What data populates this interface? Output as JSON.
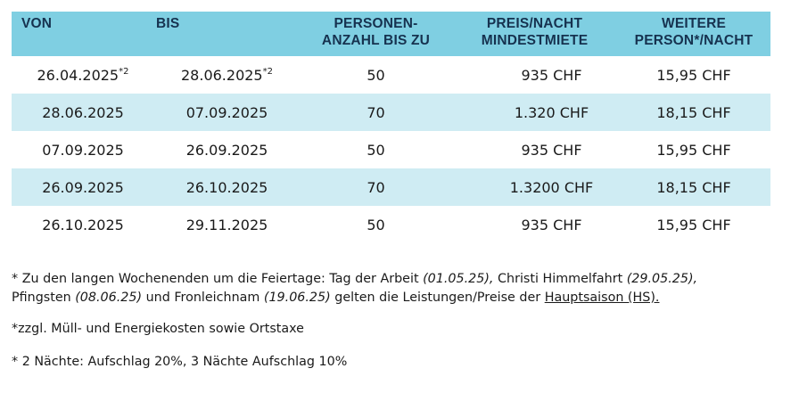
{
  "table": {
    "headers": [
      {
        "line1": "VON",
        "line2": ""
      },
      {
        "line1": "BIS",
        "line2": ""
      },
      {
        "line1": "PERSONEN-",
        "line2": "ANZAHL BIS ZU"
      },
      {
        "line1": "PREIS/NACHT",
        "line2": "MINDESTMIETE"
      },
      {
        "line1": "WEITERE",
        "line2": "PERSON*/NACHT"
      }
    ],
    "rows": [
      {
        "von": "26.04.2025",
        "von_mark": "*2",
        "bis": "28.06.2025",
        "bis_mark": "*2",
        "personen": "50",
        "preis": "935 CHF",
        "weitere": "15,95 CHF"
      },
      {
        "von": "28.06.2025",
        "von_mark": "",
        "bis": "07.09.2025",
        "bis_mark": "",
        "personen": "70",
        "preis": "1.320 CHF",
        "weitere": "18,15 CHF"
      },
      {
        "von": "07.09.2025",
        "von_mark": "",
        "bis": "26.09.2025",
        "bis_mark": "",
        "personen": "50",
        "preis": "935 CHF",
        "weitere": "15,95 CHF"
      },
      {
        "von": "26.09.2025",
        "von_mark": "",
        "bis": "26.10.2025",
        "bis_mark": "",
        "personen": "70",
        "preis": "1.3200 CHF",
        "weitere": "18,15 CHF"
      },
      {
        "von": "26.10.2025",
        "von_mark": "",
        "bis": "29.11.2025",
        "bis_mark": "",
        "personen": "50",
        "preis": "935 CHF",
        "weitere": "15,95 CHF"
      }
    ]
  },
  "notes": {
    "n1_prefix": "* Zu den langen Wochenenden um die Feiertage: Tag der Arbeit ",
    "n1_date1": "(01.05.25),",
    "n1_mid1": " Christi Himmelfahrt ",
    "n1_date2": "(29.05.25),",
    "n1_mid2": "Pfingsten ",
    "n1_date3": "(08.06.25)",
    "n1_mid3": " und Fronleichnam ",
    "n1_date4": "(19.06.25)",
    "n1_mid4": " gelten die Leistungen/Preise der ",
    "n1_link": "Hauptsaison (HS).",
    "n2": "*zzgl. Müll- und Energiekosten sowie Ortstaxe",
    "n3": "* 2 Nächte: Aufschlag 20%, 3 Nächte Aufschlag 10%"
  },
  "colors": {
    "header_bg": "#7fcfe2",
    "header_text": "#16324f",
    "alt_row_bg": "#cfecf3"
  }
}
